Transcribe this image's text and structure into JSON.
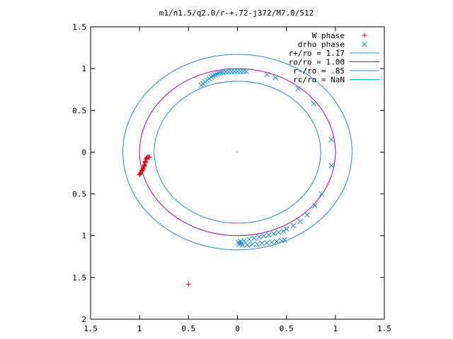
{
  "chart_data": {
    "type": "scatter",
    "title": "m1/n1.5/q2.0/r-+.72-j372/M7.0/512",
    "xlim": [
      -1.5,
      1.5
    ],
    "ylim": [
      -2,
      1.5
    ],
    "xticks": [
      {
        "v": -1.5,
        "label": "1.5"
      },
      {
        "v": -1.0,
        "label": "1"
      },
      {
        "v": -0.5,
        "label": "0.5"
      },
      {
        "v": 0,
        "label": "0"
      },
      {
        "v": 0.5,
        "label": "0.5"
      },
      {
        "v": 1.0,
        "label": "1"
      },
      {
        "v": 1.5,
        "label": "1.5"
      }
    ],
    "yticks": [
      {
        "v": 1.5,
        "label": "1.5"
      },
      {
        "v": 1.0,
        "label": "1"
      },
      {
        "v": 0.5,
        "label": "0.5"
      },
      {
        "v": 0,
        "label": "0"
      },
      {
        "v": -0.5,
        "label": "0.5"
      },
      {
        "v": -1.0,
        "label": "1"
      },
      {
        "v": -1.5,
        "label": "1.5"
      },
      {
        "v": -2.0,
        "label": "2"
      }
    ],
    "legend_position": "top-right",
    "circles": [
      {
        "name": "r+/ro = 1.17",
        "radius": 1.17,
        "color": "#1f8fd6"
      },
      {
        "name": "ro/ro = 1.00",
        "radius": 1.0,
        "color": "#b000c0"
      },
      {
        "name": "r-/ro = .85",
        "radius": 0.85,
        "color": "#1f8fd6"
      },
      {
        "name": "rc/ro = NaN",
        "radius": 0,
        "color": "#00c8c8"
      }
    ],
    "series": [
      {
        "name": "W phase",
        "marker": "plus",
        "color": "#e00000",
        "points": [
          [
            -1.0,
            -0.27
          ],
          [
            -0.99,
            -0.25
          ],
          [
            -0.98,
            -0.23
          ],
          [
            -0.97,
            -0.21
          ],
          [
            -0.96,
            -0.19
          ],
          [
            -0.955,
            -0.17
          ],
          [
            -0.95,
            -0.15
          ],
          [
            -0.945,
            -0.13
          ],
          [
            -0.94,
            -0.11
          ],
          [
            -0.935,
            -0.09
          ],
          [
            -0.93,
            -0.075
          ],
          [
            -0.925,
            -0.065
          ],
          [
            -0.915,
            -0.06
          ],
          [
            -0.905,
            -0.058
          ],
          [
            -0.9,
            -0.06
          ],
          [
            -0.995,
            -0.26
          ],
          [
            -0.975,
            -0.22
          ],
          [
            -0.965,
            -0.2
          ],
          [
            -0.952,
            -0.16
          ],
          [
            -0.942,
            -0.12
          ],
          [
            -0.5,
            -1.58
          ]
        ]
      },
      {
        "name": "drho phase",
        "marker": "cross",
        "color": "#1f8fd6",
        "points": [
          [
            -0.37,
            0.8
          ],
          [
            -0.35,
            0.82
          ],
          [
            -0.33,
            0.84
          ],
          [
            -0.31,
            0.86
          ],
          [
            -0.29,
            0.88
          ],
          [
            -0.27,
            0.9
          ],
          [
            -0.25,
            0.91
          ],
          [
            -0.23,
            0.925
          ],
          [
            -0.21,
            0.935
          ],
          [
            -0.19,
            0.945
          ],
          [
            -0.17,
            0.95
          ],
          [
            -0.15,
            0.955
          ],
          [
            -0.12,
            0.96
          ],
          [
            -0.09,
            0.962
          ],
          [
            -0.06,
            0.964
          ],
          [
            -0.03,
            0.965
          ],
          [
            0.0,
            0.966
          ],
          [
            0.03,
            0.966
          ],
          [
            0.06,
            0.965
          ],
          [
            0.09,
            0.964
          ],
          [
            0.3,
            0.93
          ],
          [
            0.39,
            0.89
          ],
          [
            0.62,
            0.76
          ],
          [
            0.78,
            0.58
          ],
          [
            0.96,
            0.15
          ],
          [
            0.96,
            -0.16
          ],
          [
            0.86,
            -0.5
          ],
          [
            0.79,
            -0.64
          ],
          [
            0.71,
            -0.75
          ],
          [
            0.64,
            -0.83
          ],
          [
            0.57,
            -0.88
          ],
          [
            0.5,
            -0.92
          ],
          [
            0.47,
            -0.945
          ],
          [
            0.42,
            -0.96
          ],
          [
            0.37,
            -0.975
          ],
          [
            0.32,
            -0.99
          ],
          [
            0.27,
            -1.0
          ],
          [
            0.22,
            -1.015
          ],
          [
            0.17,
            -1.03
          ],
          [
            0.12,
            -1.045
          ],
          [
            0.07,
            -1.06
          ],
          [
            0.03,
            -1.07
          ],
          [
            0.02,
            -1.1
          ],
          [
            0.05,
            -1.11
          ],
          [
            0.1,
            -1.11
          ],
          [
            0.15,
            -1.105
          ],
          [
            0.2,
            -1.1
          ],
          [
            0.25,
            -1.09
          ],
          [
            0.3,
            -1.085
          ],
          [
            0.35,
            -1.08
          ],
          [
            0.4,
            -1.07
          ],
          [
            0.45,
            -1.06
          ],
          [
            0.48,
            -1.05
          ],
          [
            0.01,
            -1.08
          ],
          [
            0.04,
            -1.09
          ]
        ]
      }
    ]
  }
}
